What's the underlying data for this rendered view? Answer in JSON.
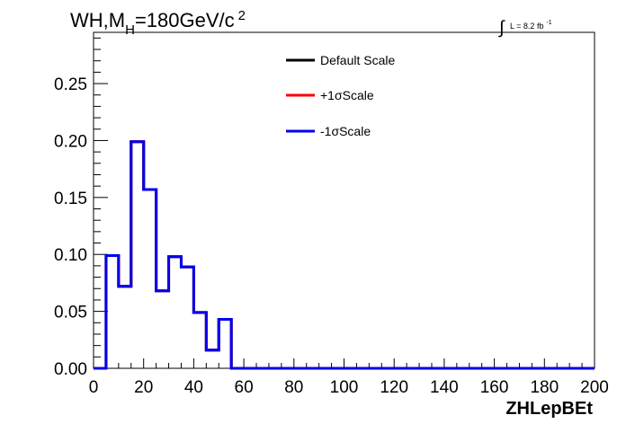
{
  "chart_data": {
    "type": "line",
    "title_main": "WH,M",
    "title_sub": "H",
    "title_rest": "=180GeV/c",
    "title_sup": "2",
    "lumi_main": "L = 8.2 fb",
    "lumi_sup": "-1",
    "xlabel": "ZHLepBEt",
    "ylabel": "",
    "xlim": [
      0,
      200
    ],
    "ylim": [
      0,
      0.295
    ],
    "x_ticks": [
      0,
      20,
      40,
      60,
      80,
      100,
      120,
      140,
      160,
      180,
      200
    ],
    "y_ticks": [
      "0.00",
      "0.05",
      "0.10",
      "0.15",
      "0.20",
      "0.25"
    ],
    "bin_width": 5,
    "bin_edges_start": 0,
    "legend_position": "top-center",
    "series": [
      {
        "name": "Default Scale",
        "color": "#000000",
        "values": [
          0,
          0.099,
          0.072,
          0.199,
          0.157,
          0.068,
          0.098,
          0.089,
          0.049,
          0.016,
          0.043,
          0,
          0,
          0,
          0,
          0,
          0,
          0,
          0,
          0,
          0,
          0,
          0,
          0,
          0,
          0,
          0,
          0,
          0,
          0,
          0,
          0,
          0,
          0,
          0,
          0,
          0,
          0,
          0,
          0
        ]
      },
      {
        "name": "+1σScale",
        "color": "#ff0000",
        "values": [
          0,
          0.099,
          0.072,
          0.199,
          0.157,
          0.068,
          0.098,
          0.089,
          0.049,
          0.016,
          0.043,
          0,
          0,
          0,
          0,
          0,
          0,
          0,
          0,
          0,
          0,
          0,
          0,
          0,
          0,
          0,
          0,
          0,
          0,
          0,
          0,
          0,
          0,
          0,
          0,
          0,
          0,
          0,
          0,
          0
        ]
      },
      {
        "name": "-1σScale",
        "color": "#0000ee",
        "values": [
          0,
          0.099,
          0.072,
          0.199,
          0.157,
          0.068,
          0.098,
          0.089,
          0.049,
          0.016,
          0.043,
          0,
          0,
          0,
          0,
          0,
          0,
          0,
          0,
          0,
          0,
          0,
          0,
          0,
          0,
          0,
          0,
          0,
          0,
          0,
          0,
          0,
          0,
          0,
          0,
          0,
          0,
          0,
          0,
          0
        ]
      }
    ]
  }
}
